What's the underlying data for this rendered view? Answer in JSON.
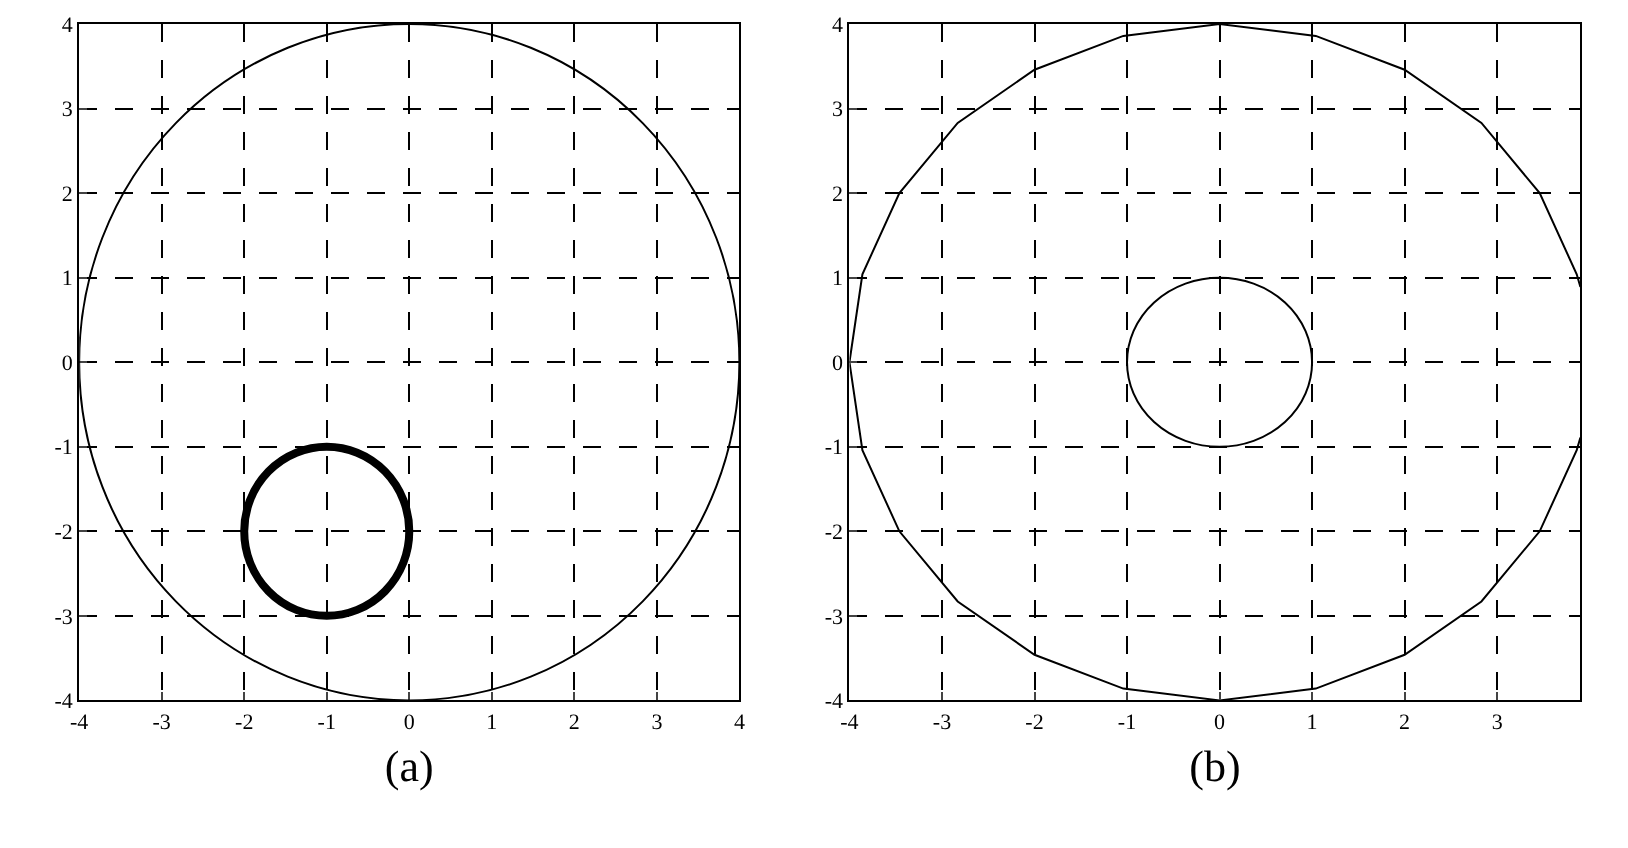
{
  "chart_data": [
    {
      "type": "line",
      "xlabel": "(a)",
      "xlim": [
        -4,
        4
      ],
      "ylim": [
        -4,
        4
      ],
      "xticks": [
        -4,
        -3,
        -2,
        -1,
        0,
        1,
        2,
        3,
        4
      ],
      "yticks": [
        -4,
        -3,
        -2,
        -1,
        0,
        1,
        2,
        3,
        4
      ],
      "grid": true
    },
    {
      "type": "line",
      "xlabel": "(b)",
      "xlim": [
        -4,
        3.9
      ],
      "ylim": [
        -4,
        4
      ],
      "xticks": [
        -4,
        -3,
        -2,
        -1,
        0,
        1,
        2,
        3
      ],
      "yticks": [
        -4,
        -3,
        -2,
        -1,
        0,
        1,
        2,
        3,
        4
      ],
      "grid": true,
      "line_style": "solid",
      "marker": "none",
      "series": [
        {
          "color": "#000000",
          "x": [
            3.9,
            3.86,
            3.46,
            2.83,
            2,
            1.04,
            0,
            -1.04,
            -2,
            -2.83,
            -3.46,
            -3.86,
            -4,
            -3.86,
            -3.46,
            -2.83,
            -2,
            -1.04,
            0,
            1.04,
            2,
            2.83,
            3.46,
            3.86,
            3.9
          ],
          "values": [
            0.89,
            1.04,
            2,
            2.83,
            3.46,
            3.86,
            4,
            3.86,
            3.46,
            2.83,
            2,
            1.04,
            0,
            -1.04,
            -2,
            -2.83,
            -3.46,
            -3.86,
            -4,
            -3.86,
            -3.46,
            -2.83,
            -2,
            -1.04,
            -0.89
          ]
        }
      ]
    }
  ]
}
